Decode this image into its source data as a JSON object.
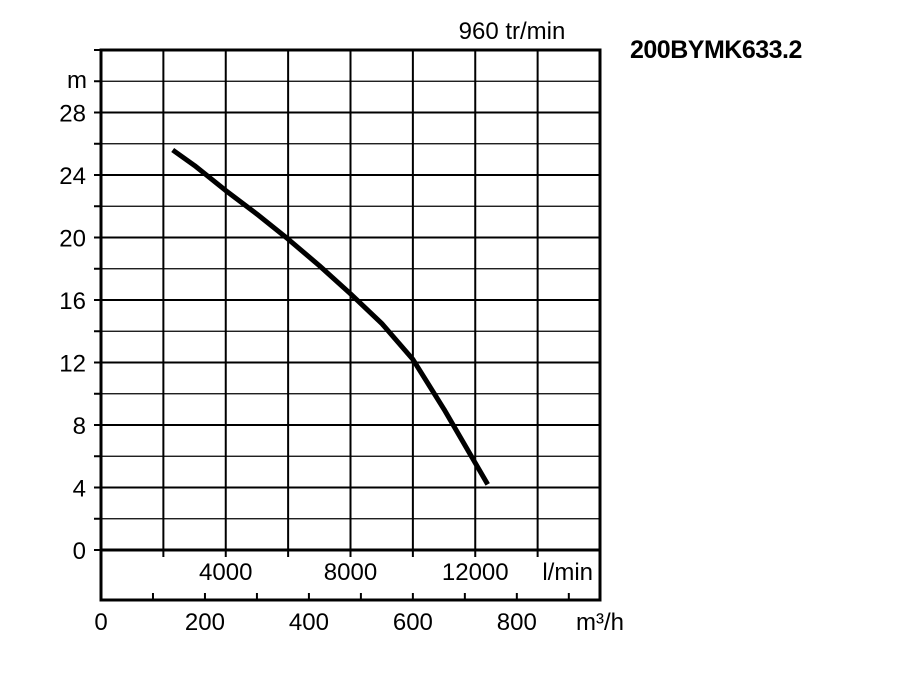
{
  "model_title": "200BYMK633.2",
  "chart_data": {
    "type": "line",
    "title": "960 tr/min",
    "ylabel": "m",
    "ylim": [
      0,
      32
    ],
    "yticks": [
      0,
      4,
      8,
      12,
      16,
      20,
      24,
      28
    ],
    "grid": true,
    "x_primary": {
      "unit": "l/min",
      "xlim": [
        0,
        16000
      ],
      "ticks": [
        4000,
        8000,
        12000
      ],
      "tick_labels": [
        "4000",
        "8000",
        "12000"
      ]
    },
    "x_secondary": {
      "unit": "m³/h",
      "xlim": [
        0,
        960
      ],
      "ticks": [
        0,
        200,
        400,
        600,
        800
      ],
      "tick_labels": [
        "0",
        "200",
        "400",
        "600",
        "800"
      ]
    },
    "series": [
      {
        "color": "#000000",
        "x": [
          2300,
          3000,
          4000,
          5000,
          6000,
          7000,
          8000,
          9000,
          10000,
          11000,
          12400
        ],
        "y": [
          25.6,
          24.6,
          23.0,
          21.5,
          19.9,
          18.2,
          16.4,
          14.5,
          12.2,
          9.0,
          4.2
        ]
      }
    ]
  }
}
